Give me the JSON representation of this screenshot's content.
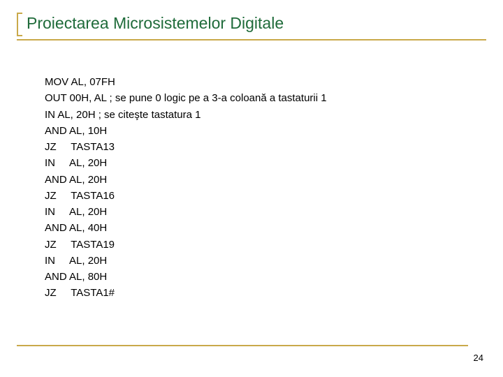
{
  "title": {
    "text": "Proiectarea Microsistemelor Digitale",
    "color": "#1f6b3a",
    "fontsize": 23
  },
  "accent_color": "#c9a94a",
  "underline_color": "#c9a94a",
  "code_lines": [
    "MOV AL, 07FH",
    "OUT 00H, AL ; se pune 0 logic pe a 3-a coloană a tastaturii 1",
    "IN AL, 20H ; se citeşte tastatura 1",
    "AND AL, 10H",
    "JZ     TASTA13",
    "IN     AL, 20H",
    "AND AL, 20H",
    "JZ     TASTA16",
    "IN     AL, 20H",
    "AND AL, 40H",
    "JZ     TASTA19",
    "IN     AL, 20H",
    "AND AL, 80H",
    "JZ     TASTA1#"
  ],
  "page_number": "24",
  "background": "#ffffff",
  "text_color": "#000000"
}
